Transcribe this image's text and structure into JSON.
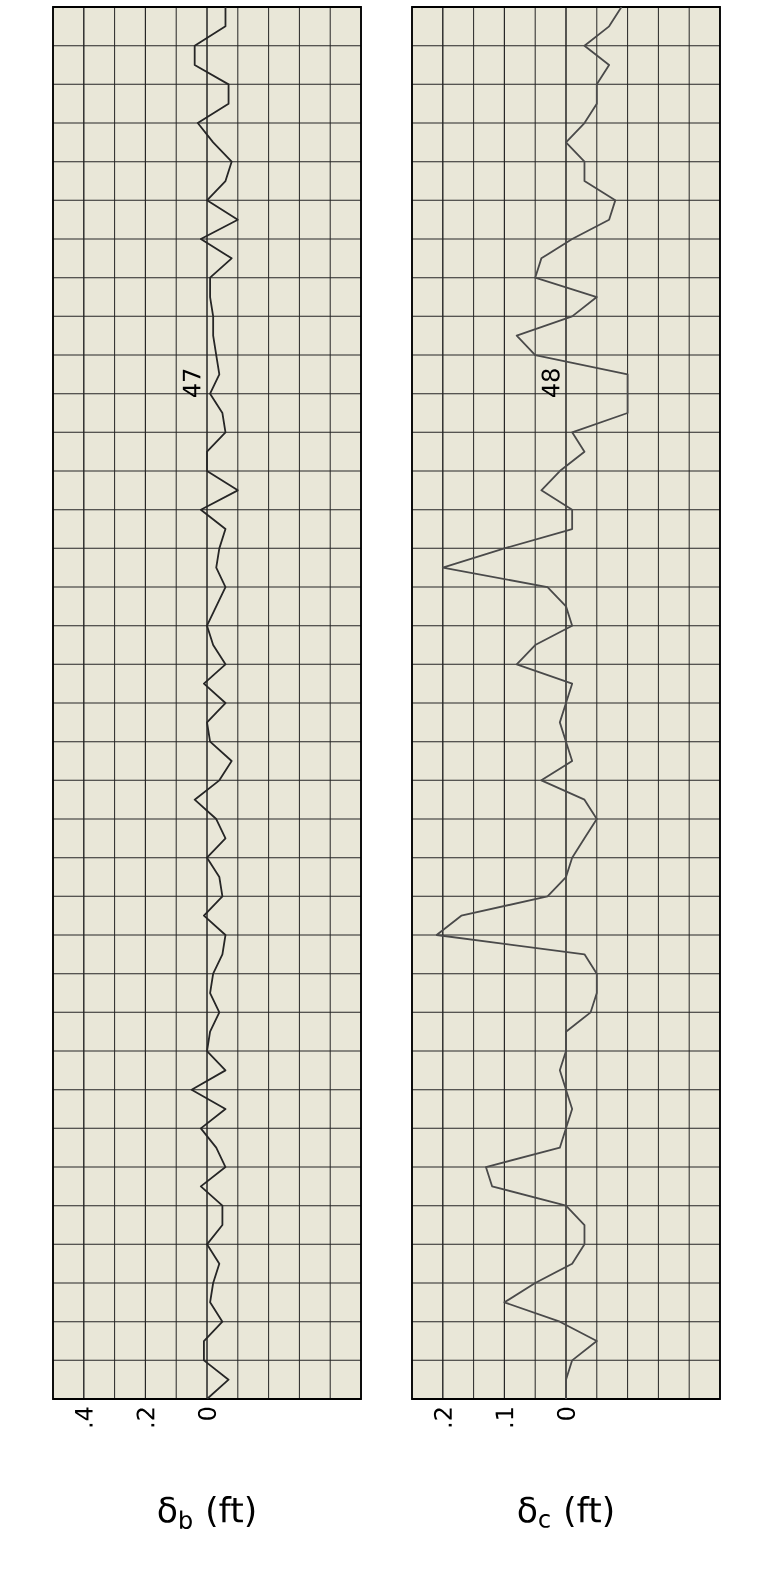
{
  "chart_data": [
    {
      "type": "line",
      "orientation": "horizontal",
      "xlabel": "δ$_{b}$ (ft)",
      "annotations": [
        "47"
      ],
      "grid": true,
      "tick_labels": "x",
      "color": "#262626",
      "categories": [
        null,
        null,
        null,
        null,
        null,
        null,
        null,
        null,
        null,
        null,
        null,
        null,
        null,
        null,
        null,
        null,
        null,
        null,
        null,
        null,
        null,
        null,
        null,
        null,
        null,
        null,
        null,
        null,
        null,
        null,
        null,
        null,
        null,
        null,
        null,
        null,
        null,
        null,
        null,
        null,
        null,
        null,
        null,
        null,
        null,
        null,
        null,
        null,
        null,
        null,
        null,
        null,
        null,
        null,
        null,
        null,
        null,
        null,
        null,
        null,
        null,
        null,
        null,
        null,
        null,
        null,
        null,
        null,
        null,
        null,
        null,
        null,
        null
      ],
      "values": [
        -0.06,
        -0.06,
        0.04,
        0.04,
        -0.07,
        -0.07,
        0.03,
        -0.02,
        -0.08,
        -0.06,
        0.0,
        -0.1,
        0.02,
        -0.08,
        -0.01,
        -0.01,
        -0.02,
        -0.02,
        -0.03,
        -0.04,
        -0.01,
        -0.05,
        -0.06,
        0.0,
        0.0,
        -0.1,
        0.02,
        -0.06,
        -0.04,
        -0.03,
        -0.06,
        -0.03,
        0.0,
        -0.02,
        -0.06,
        0.01,
        -0.06,
        0.0,
        -0.01,
        -0.08,
        -0.04,
        0.04,
        -0.03,
        -0.06,
        0.0,
        -0.04,
        -0.05,
        0.01,
        -0.06,
        -0.05,
        -0.02,
        -0.01,
        -0.04,
        -0.01,
        0.0,
        -0.06,
        0.05,
        -0.06,
        0.02,
        -0.03,
        -0.06,
        0.02,
        -0.05,
        -0.05,
        0.0,
        -0.04,
        -0.02,
        -0.01,
        -0.05,
        0.01,
        0.01,
        -0.07,
        0.0
      ],
      "xlim": [
        0.5,
        -0.5
      ],
      "xticks": [
        {
          "value": 0.4,
          "label": ".4"
        },
        {
          "value": 0.2,
          "label": ".2"
        },
        {
          "value": 0,
          "label": "0"
        }
      ]
    },
    {
      "type": "line",
      "orientation": "horizontal",
      "xlabel": "δ$_{c}$ (ft)",
      "annotations": [
        "48"
      ],
      "grid": true,
      "tick_labels": "x",
      "color": "#4a4a4a",
      "categories": [
        null,
        null,
        null,
        null,
        null,
        null,
        null,
        null,
        null,
        null,
        null,
        null,
        null,
        null,
        null,
        null,
        null,
        null,
        null,
        null,
        null,
        null,
        null,
        null,
        null,
        null,
        null,
        null,
        null,
        null,
        null,
        null,
        null,
        null,
        null,
        null,
        null,
        null,
        null,
        null,
        null,
        null,
        null,
        null,
        null,
        null,
        null,
        null,
        null,
        null,
        null,
        null,
        null,
        null,
        null,
        null,
        null,
        null,
        null,
        null,
        null,
        null,
        null,
        null,
        null,
        null,
        null,
        null,
        null,
        null,
        null,
        null,
        null
      ],
      "values": [
        -0.09,
        -0.07,
        -0.03,
        -0.07,
        -0.05,
        -0.05,
        -0.03,
        0.0,
        -0.03,
        -0.03,
        -0.08,
        -0.07,
        -0.01,
        0.04,
        0.05,
        -0.05,
        -0.01,
        0.08,
        0.05,
        -0.1,
        -0.1,
        -0.1,
        -0.01,
        -0.03,
        0.01,
        0.04,
        -0.01,
        -0.01,
        0.1,
        0.2,
        0.03,
        0.0,
        -0.01,
        0.05,
        0.08,
        -0.01,
        0.0,
        0.01,
        0.0,
        -0.01,
        0.04,
        -0.03,
        -0.05,
        -0.03,
        -0.01,
        0.0,
        0.03,
        0.17,
        0.21,
        -0.03,
        -0.05,
        -0.05,
        -0.04,
        0.0,
        0.0,
        0.01,
        0.0,
        -0.01,
        0.0,
        0.01,
        0.13,
        0.12,
        0.0,
        -0.03,
        -0.03,
        -0.01,
        0.05,
        0.1,
        0.01,
        -0.05,
        -0.01,
        0.0,
        0.0
      ],
      "xlim": [
        0.25,
        -0.25
      ],
      "xticks": [
        {
          "value": 0.2,
          "label": ".2"
        },
        {
          "value": 0.1,
          "label": ".1"
        },
        {
          "value": 0,
          "label": "0"
        }
      ]
    }
  ]
}
